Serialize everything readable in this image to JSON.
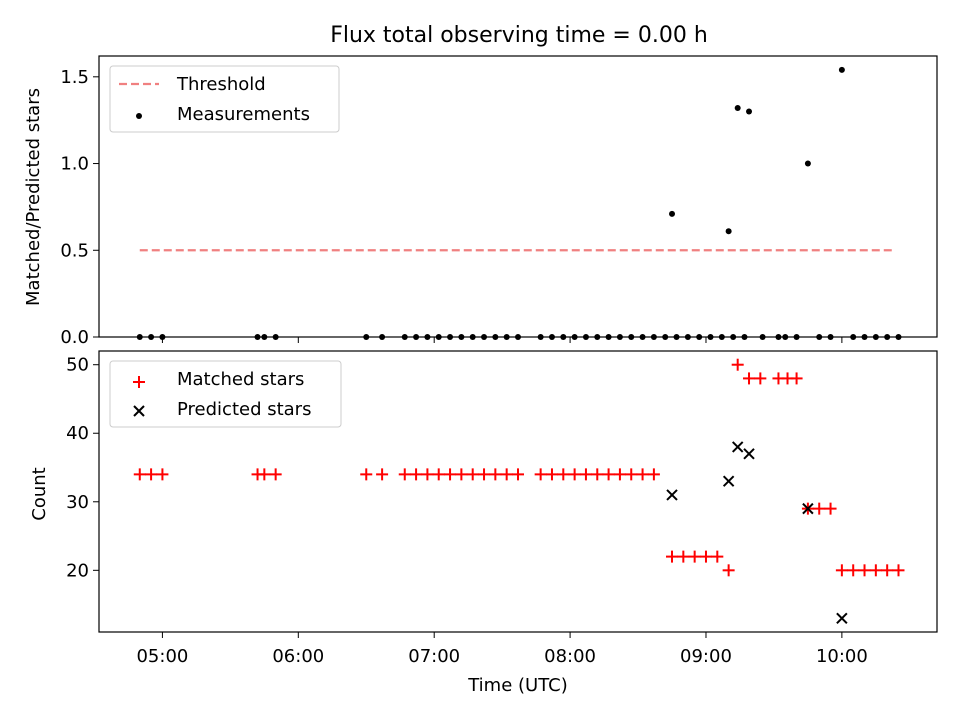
{
  "chart_data": [
    {
      "type": "scatter",
      "title": "Flux total observing time = 0.00 h",
      "xlabel": "",
      "ylabel": "Matched/Predicted stars",
      "xlim": [
        "04:32",
        "10:42"
      ],
      "ylim": [
        0,
        1.62
      ],
      "yticks": [
        "0.0",
        "0.5",
        "1.0",
        "1.5"
      ],
      "ytick_values": [
        0,
        0.5,
        1.0,
        1.5
      ],
      "legend_position": "upper-left",
      "threshold": {
        "name": "Threshold",
        "value": 0.5,
        "x_start": "04:50",
        "x_end": "10:23",
        "color": "#f08080",
        "style": "dashed"
      },
      "series": [
        {
          "name": "Measurements",
          "marker": "dot",
          "color": "#000000",
          "points": [
            [
              "04:50",
              0
            ],
            [
              "04:55",
              0
            ],
            [
              "05:00",
              0
            ],
            [
              "05:42",
              0
            ],
            [
              "05:45",
              0
            ],
            [
              "05:50",
              0
            ],
            [
              "06:30",
              0
            ],
            [
              "06:37",
              0
            ],
            [
              "06:47",
              0
            ],
            [
              "06:52",
              0
            ],
            [
              "06:57",
              0
            ],
            [
              "07:02",
              0
            ],
            [
              "07:07",
              0
            ],
            [
              "07:12",
              0
            ],
            [
              "07:17",
              0
            ],
            [
              "07:22",
              0
            ],
            [
              "07:27",
              0
            ],
            [
              "07:32",
              0
            ],
            [
              "07:37",
              0
            ],
            [
              "07:47",
              0
            ],
            [
              "07:52",
              0
            ],
            [
              "07:57",
              0
            ],
            [
              "08:02",
              0
            ],
            [
              "08:07",
              0
            ],
            [
              "08:12",
              0
            ],
            [
              "08:17",
              0
            ],
            [
              "08:22",
              0
            ],
            [
              "08:27",
              0
            ],
            [
              "08:32",
              0
            ],
            [
              "08:37",
              0
            ],
            [
              "08:42",
              0
            ],
            [
              "08:47",
              0
            ],
            [
              "08:52",
              0
            ],
            [
              "08:57",
              0
            ],
            [
              "08:45",
              0.71
            ],
            [
              "09:02",
              0
            ],
            [
              "09:07",
              0
            ],
            [
              "09:12",
              0
            ],
            [
              "09:17",
              0
            ],
            [
              "09:10",
              0.61
            ],
            [
              "09:14",
              1.32
            ],
            [
              "09:19",
              1.3
            ],
            [
              "09:25",
              0
            ],
            [
              "09:32",
              0
            ],
            [
              "09:35",
              0
            ],
            [
              "09:40",
              0
            ],
            [
              "09:45",
              1.0
            ],
            [
              "09:50",
              0
            ],
            [
              "09:55",
              0
            ],
            [
              "10:00",
              1.54
            ],
            [
              "10:05",
              0
            ],
            [
              "10:10",
              0
            ],
            [
              "10:15",
              0
            ],
            [
              "10:20",
              0
            ],
            [
              "10:25",
              0
            ]
          ]
        }
      ]
    },
    {
      "type": "scatter",
      "xlabel": "Time (UTC)",
      "ylabel": "Count",
      "xlim": [
        "04:32",
        "10:42"
      ],
      "ylim": [
        11,
        52
      ],
      "xticks": [
        "05:00",
        "06:00",
        "07:00",
        "08:00",
        "09:00",
        "10:00"
      ],
      "yticks": [
        "20",
        "30",
        "40",
        "50"
      ],
      "ytick_values": [
        20,
        30,
        40,
        50
      ],
      "legend_position": "upper-left",
      "series": [
        {
          "name": "Matched stars",
          "marker": "plus",
          "color": "#ff0000",
          "points": [
            [
              "04:50",
              34
            ],
            [
              "04:55",
              34
            ],
            [
              "05:00",
              34
            ],
            [
              "05:42",
              34
            ],
            [
              "05:45",
              34
            ],
            [
              "05:50",
              34
            ],
            [
              "06:30",
              34
            ],
            [
              "06:37",
              34
            ],
            [
              "06:47",
              34
            ],
            [
              "06:52",
              34
            ],
            [
              "06:57",
              34
            ],
            [
              "07:02",
              34
            ],
            [
              "07:07",
              34
            ],
            [
              "07:12",
              34
            ],
            [
              "07:17",
              34
            ],
            [
              "07:22",
              34
            ],
            [
              "07:27",
              34
            ],
            [
              "07:32",
              34
            ],
            [
              "07:37",
              34
            ],
            [
              "07:47",
              34
            ],
            [
              "07:52",
              34
            ],
            [
              "07:57",
              34
            ],
            [
              "08:02",
              34
            ],
            [
              "08:07",
              34
            ],
            [
              "08:12",
              34
            ],
            [
              "08:17",
              34
            ],
            [
              "08:22",
              34
            ],
            [
              "08:27",
              34
            ],
            [
              "08:32",
              34
            ],
            [
              "08:37",
              34
            ],
            [
              "08:45",
              22
            ],
            [
              "08:50",
              22
            ],
            [
              "08:55",
              22
            ],
            [
              "09:00",
              22
            ],
            [
              "09:05",
              22
            ],
            [
              "09:10",
              20
            ],
            [
              "09:14",
              50
            ],
            [
              "09:19",
              48
            ],
            [
              "09:24",
              48
            ],
            [
              "09:32",
              48
            ],
            [
              "09:36",
              48
            ],
            [
              "09:40",
              48
            ],
            [
              "09:45",
              29
            ],
            [
              "09:50",
              29
            ],
            [
              "09:55",
              29
            ],
            [
              "10:00",
              20
            ],
            [
              "10:05",
              20
            ],
            [
              "10:10",
              20
            ],
            [
              "10:15",
              20
            ],
            [
              "10:20",
              20
            ],
            [
              "10:25",
              20
            ]
          ]
        },
        {
          "name": "Predicted stars",
          "marker": "x",
          "color": "#000000",
          "points": [
            [
              "08:45",
              31
            ],
            [
              "09:10",
              33
            ],
            [
              "09:14",
              38
            ],
            [
              "09:19",
              37
            ],
            [
              "09:45",
              29
            ],
            [
              "10:00",
              13
            ]
          ]
        }
      ]
    }
  ]
}
